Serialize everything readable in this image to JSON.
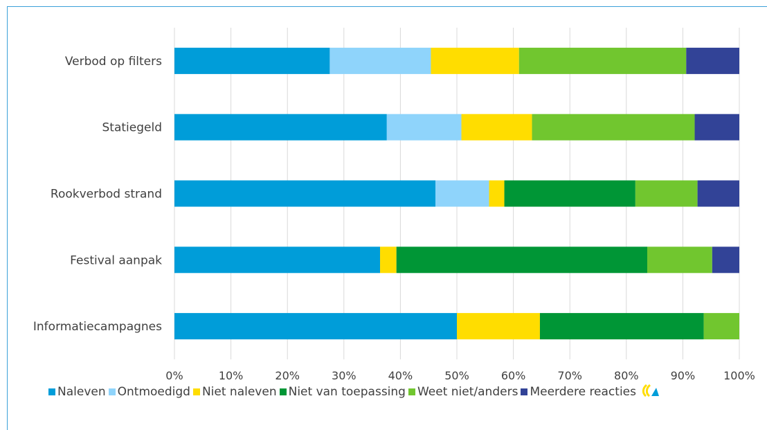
{
  "chart_data": {
    "type": "bar",
    "orientation": "horizontal",
    "stacked": true,
    "categories": [
      "Verbod op filters",
      "Statiegeld",
      "Rookverbod strand",
      "Festival aanpak",
      "Informatiecampagnes"
    ],
    "series": [
      {
        "name": "Naleven",
        "color": "#009dd9",
        "values": [
          27.5,
          37.6,
          46.2,
          36.4,
          50.0
        ]
      },
      {
        "name": "Ontmoedigd",
        "color": "#8fd4fb",
        "values": [
          17.9,
          13.2,
          9.5,
          0,
          0
        ]
      },
      {
        "name": "Niet naleven",
        "color": "#ffdd00",
        "values": [
          15.6,
          12.5,
          2.7,
          2.9,
          14.7
        ]
      },
      {
        "name": "Niet van toepassing",
        "color": "#009636",
        "values": [
          0,
          0,
          23.2,
          44.4,
          29.0
        ]
      },
      {
        "name": "Weet niet/anders",
        "color": "#71c62f",
        "values": [
          29.6,
          28.8,
          11.0,
          11.5,
          6.3
        ]
      },
      {
        "name": "Meerdere reacties",
        "color": "#324397",
        "values": [
          9.4,
          7.9,
          7.4,
          4.8,
          0
        ]
      }
    ],
    "xlim": [
      0,
      100
    ],
    "x_ticks": [
      "0%",
      "10%",
      "20%",
      "30%",
      "40%",
      "50%",
      "60%",
      "70%",
      "80%",
      "90%",
      "100%"
    ],
    "grid": true,
    "legend_position": "bottom"
  },
  "logo": {
    "name": "logo-icon",
    "colors": [
      "#ffdd00",
      "#009dd9"
    ]
  }
}
